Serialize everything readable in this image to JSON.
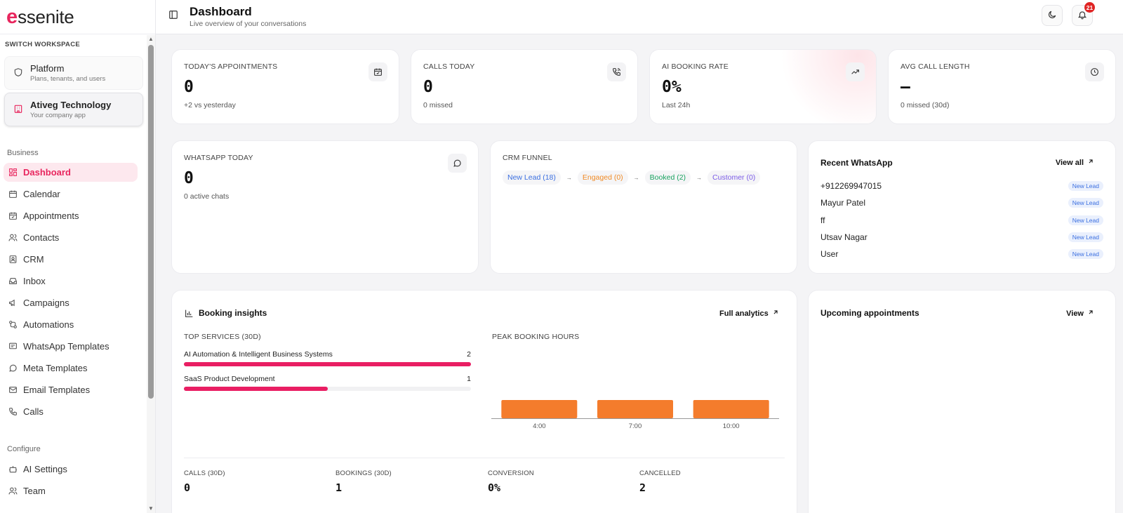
{
  "brand": {
    "logo_mark": "e",
    "logo_text": "ssenite",
    "accent": "#e8265e"
  },
  "sidebar": {
    "switch_label": "SWITCH WORKSPACE",
    "workspaces": [
      {
        "title": "Platform",
        "subtitle": "Plans, tenants, and users",
        "icon": "shield-icon"
      },
      {
        "title": "Ativeg Technology",
        "subtitle": "Your company app",
        "icon": "building-icon"
      }
    ],
    "business_label": "Business",
    "business_items": [
      {
        "label": "Dashboard",
        "icon": "grid-icon"
      },
      {
        "label": "Calendar",
        "icon": "calendar-icon"
      },
      {
        "label": "Appointments",
        "icon": "calendar-check-icon"
      },
      {
        "label": "Contacts",
        "icon": "users-icon"
      },
      {
        "label": "CRM",
        "icon": "contact-card-icon"
      },
      {
        "label": "Inbox",
        "icon": "inbox-icon"
      },
      {
        "label": "Campaigns",
        "icon": "megaphone-icon"
      },
      {
        "label": "Automations",
        "icon": "workflow-icon"
      },
      {
        "label": "WhatsApp Templates",
        "icon": "message-square-icon"
      },
      {
        "label": "Meta Templates",
        "icon": "message-circle-icon"
      },
      {
        "label": "Email Templates",
        "icon": "mail-icon"
      },
      {
        "label": "Calls",
        "icon": "phone-icon"
      }
    ],
    "configure_label": "Configure",
    "configure_items": [
      {
        "label": "AI Settings",
        "icon": "bot-icon"
      },
      {
        "label": "Team",
        "icon": "users-icon"
      }
    ]
  },
  "header": {
    "title": "Dashboard",
    "subtitle": "Live overview of your conversations",
    "notification_count": "21"
  },
  "stats": [
    {
      "label": "TODAY'S APPOINTMENTS",
      "value": "0",
      "sub": "+2 vs yesterday",
      "icon": "calendar-check-icon"
    },
    {
      "label": "CALLS TODAY",
      "value": "0",
      "sub": "0 missed",
      "icon": "phone-call-icon"
    },
    {
      "label": "AI BOOKING RATE",
      "value": "0%",
      "sub": "Last 24h",
      "icon": "trending-up-icon"
    },
    {
      "label": "AVG CALL LENGTH",
      "value": "–",
      "sub": "0 missed (30d)",
      "icon": "clock-icon"
    }
  ],
  "whatsapp_today": {
    "label": "WHATSAPP TODAY",
    "value": "0",
    "sub": "0 active chats"
  },
  "crm_funnel": {
    "label": "CRM FUNNEL",
    "stages": [
      {
        "text": "New Lead (18)",
        "color": "#3b6fe0"
      },
      {
        "text": "Engaged (0)",
        "color": "#f08a24"
      },
      {
        "text": "Booked (2)",
        "color": "#1aa260"
      },
      {
        "text": "Customer (0)",
        "color": "#7b5be6"
      }
    ],
    "arrow": "→"
  },
  "recent_whatsapp": {
    "title": "Recent WhatsApp",
    "view_all": "View all",
    "rows": [
      {
        "name": "+912269947015",
        "tag": "New Lead"
      },
      {
        "name": "Mayur Patel",
        "tag": "New Lead"
      },
      {
        "name": "ff",
        "tag": "New Lead"
      },
      {
        "name": "Utsav Nagar",
        "tag": "New Lead"
      },
      {
        "name": "User",
        "tag": "New Lead"
      }
    ]
  },
  "booking_insights": {
    "title": "Booking insights",
    "full_analytics": "Full analytics",
    "top_services_label": "TOP SERVICES (30D)",
    "services": [
      {
        "name": "AI Automation & Intelligent Business Systems",
        "count": "2",
        "fraction": 1.0
      },
      {
        "name": "SaaS Product Development",
        "count": "1",
        "fraction": 0.5
      }
    ],
    "peak_label": "PEAK BOOKING HOURS",
    "peak_color": "#f47c2c",
    "footer": [
      {
        "label": "CALLS (30D)",
        "value": "0"
      },
      {
        "label": "BOOKINGS (30D)",
        "value": "1"
      },
      {
        "label": "CONVERSION",
        "value": "0%"
      },
      {
        "label": "CANCELLED",
        "value": "2"
      }
    ]
  },
  "chart_data": {
    "type": "bar",
    "title": "PEAK BOOKING HOURS",
    "categories": [
      "4:00",
      "7:00",
      "10:00"
    ],
    "values": [
      1,
      1,
      1
    ],
    "xlabel": "",
    "ylabel": "",
    "grid": false
  },
  "upcoming": {
    "title": "Upcoming appointments",
    "view": "View"
  }
}
